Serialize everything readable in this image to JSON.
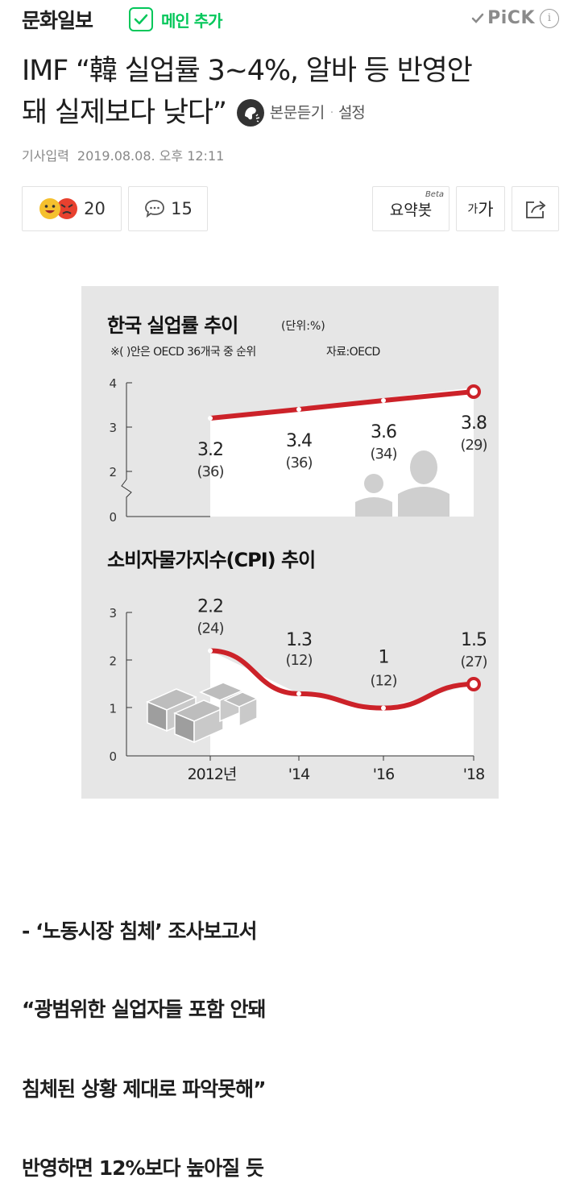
{
  "header": {
    "press": "문화일보",
    "main_add": "메인 추가",
    "pick": "PiCK",
    "info_icon": "i"
  },
  "article": {
    "title_line1": "IMF “韓 실업률 3~4%, 알바 등 반영안",
    "title_line2": "돼 실제보다 낮다”",
    "listen": "본문듣기",
    "settings": "설정",
    "date_label": "기사입력",
    "date_value": "2019.08.08. 오후 12:11"
  },
  "actions": {
    "reactions": "20",
    "comments": "15",
    "summary": "요약봇",
    "beta": "Beta",
    "font_small": "가",
    "font_big": "가"
  },
  "figure": {
    "title1": "한국 실업률 추이",
    "unit": "(단위:%)",
    "note": "※(  )안은 OECD 36개국 중 순위",
    "source": "자료:OECD",
    "title2": "소비자물가지수(CPI) 추이"
  },
  "chart_data": [
    {
      "type": "line",
      "title": "한국 실업률 추이",
      "x": [
        "2012년",
        "'14",
        "'16",
        "'18"
      ],
      "series": [
        {
          "values": [
            3.2,
            3.4,
            3.6,
            3.8
          ]
        }
      ],
      "value_labels": [
        "3.2",
        "3.4",
        "3.6",
        "3.8"
      ],
      "rank_labels": [
        "(36)",
        "(36)",
        "(34)",
        "(29)"
      ],
      "yticks": [
        "4",
        "3",
        "2",
        "0"
      ],
      "ylim": [
        0,
        4
      ],
      "axis_break": true,
      "color": "#cc2229"
    },
    {
      "type": "line",
      "title": "소비자물가지수(CPI) 추이",
      "x": [
        "2012년",
        "'14",
        "'16",
        "'18"
      ],
      "xtick_labels": [
        "2012년",
        "'14",
        "'16",
        "'18"
      ],
      "series": [
        {
          "values": [
            2.2,
            1.3,
            1.0,
            1.5
          ]
        }
      ],
      "value_labels": [
        "2.2",
        "1.3",
        "1",
        "1.5"
      ],
      "rank_labels": [
        "(24)",
        "(12)",
        "(12)",
        "(27)"
      ],
      "yticks": [
        "3",
        "2",
        "1",
        "0"
      ],
      "ylim": [
        0,
        3
      ],
      "color": "#cc2229"
    }
  ],
  "body": {
    "line1": "- ‘노동시장 침체’ 조사보고서",
    "line2": "“광범위한 실업자들 포함 안돼",
    "line3": "침체된 상황 제대로 파악못해”",
    "line4": "반영하면 12%보다 높아질 듯"
  },
  "colors": {
    "brand_green": "#03c75a",
    "chart_red": "#cc2229",
    "panel_bg": "#e6e6e6"
  },
  "icons": [
    "check-icon",
    "pick-check-icon",
    "info-icon",
    "audio-listen-icon",
    "smile-emoji-icon",
    "angry-emoji-icon",
    "comment-bubble-icon",
    "share-icon"
  ]
}
